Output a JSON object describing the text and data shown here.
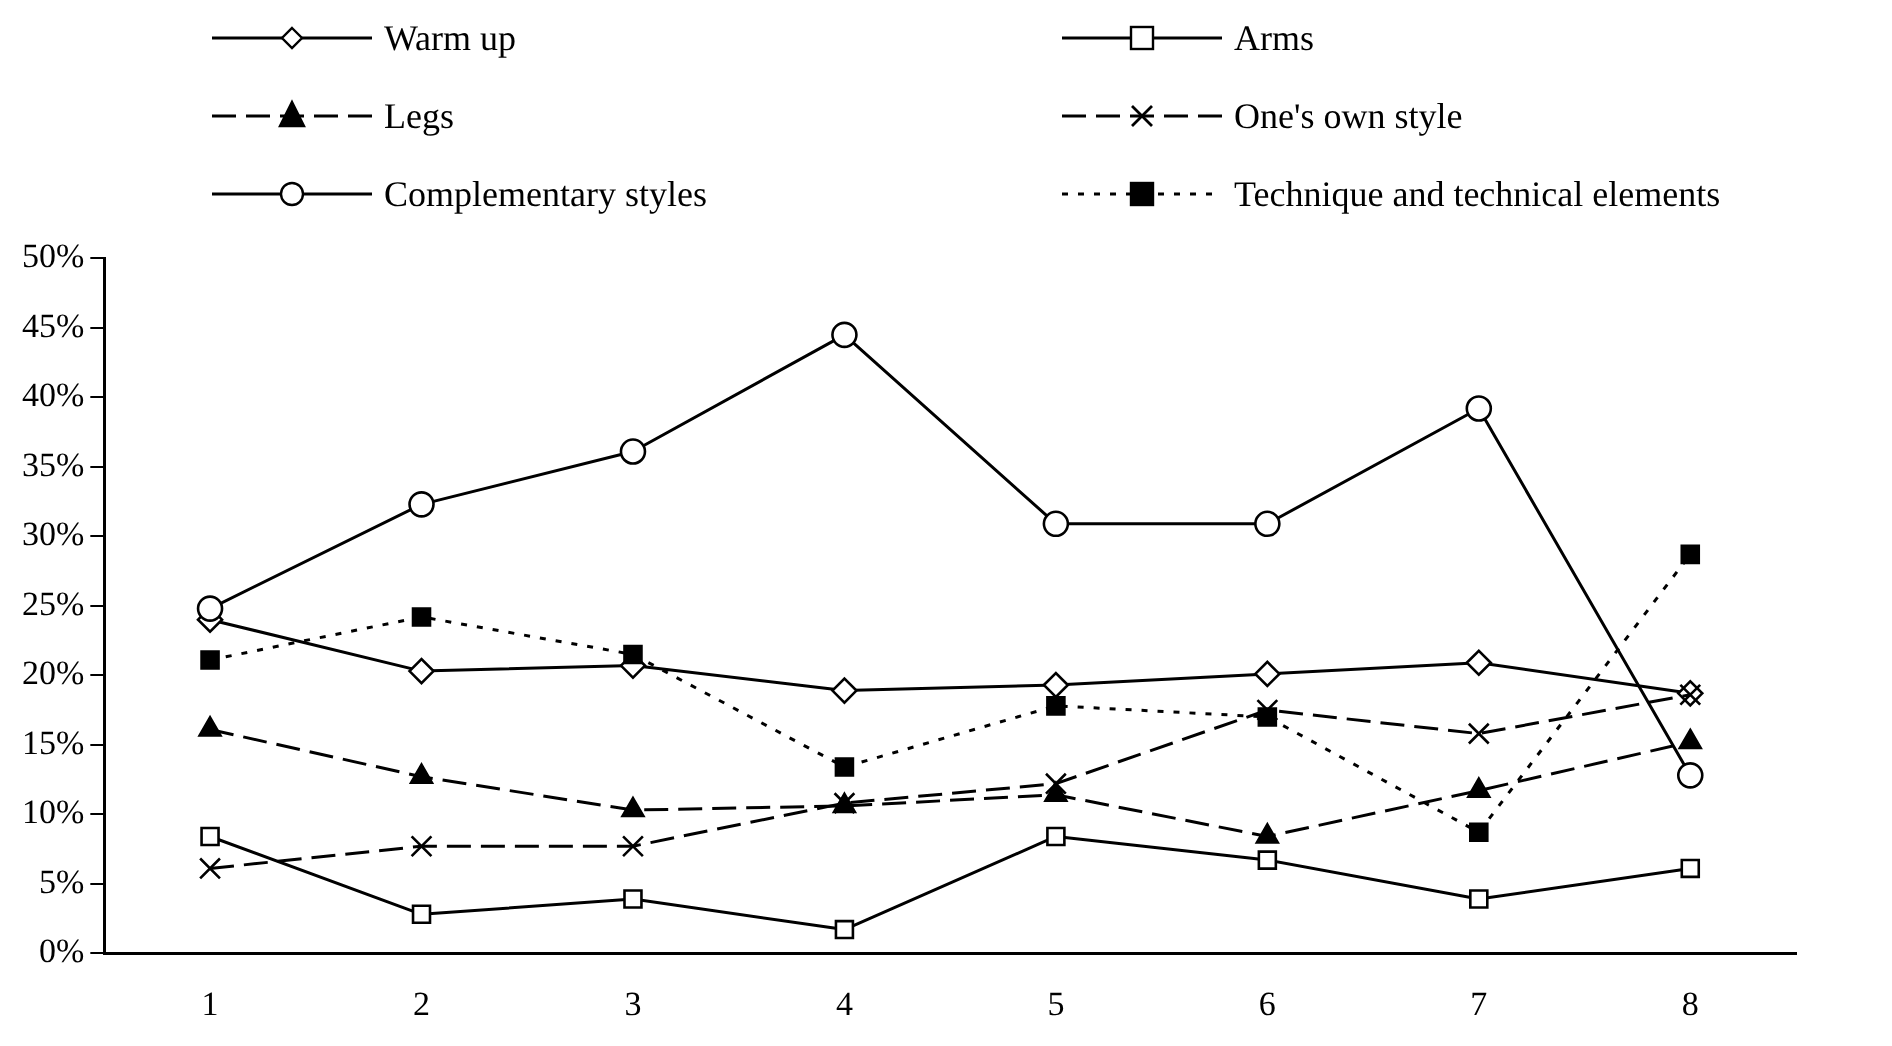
{
  "chart_data": {
    "type": "line",
    "categories": [
      "1",
      "2",
      "3",
      "4",
      "5",
      "6",
      "7",
      "8"
    ],
    "series": [
      {
        "name": "Warm up",
        "color": "#000000",
        "marker": "diamond",
        "line_style": "solid",
        "values": [
          24.0,
          20.3,
          20.7,
          18.9,
          19.3,
          20.1,
          20.9,
          18.7
        ]
      },
      {
        "name": "Arms",
        "color": "#000000",
        "marker": "square",
        "line_style": "solid",
        "values": [
          8.4,
          2.8,
          3.9,
          1.7,
          8.4,
          6.7,
          3.9,
          6.1
        ]
      },
      {
        "name": "Legs",
        "color": "#000000",
        "marker": "triangle",
        "line_style": "dashed",
        "values": [
          16.1,
          12.7,
          10.3,
          10.6,
          11.4,
          8.4,
          11.7,
          15.2
        ]
      },
      {
        "name": "One's own style",
        "color": "#000000",
        "marker": "cross",
        "line_style": "dashed",
        "values": [
          6.1,
          7.7,
          7.7,
          10.8,
          12.2,
          17.5,
          15.8,
          18.6
        ]
      },
      {
        "name": "Complementary styles",
        "color": "#000000",
        "marker": "circle",
        "line_style": "solid",
        "values": [
          24.8,
          32.3,
          36.1,
          44.5,
          30.9,
          30.9,
          39.2,
          12.8
        ]
      },
      {
        "name": "Technique and technical elements",
        "color": "#000000",
        "marker": "square",
        "line_style": "dotted",
        "values": [
          21.1,
          24.2,
          21.5,
          13.4,
          17.8,
          17.0,
          8.7,
          28.7
        ]
      }
    ],
    "ylim": [
      0,
      50
    ],
    "yticks": [
      {
        "value": 0,
        "label": "0%"
      },
      {
        "value": 5,
        "label": "5%"
      },
      {
        "value": 10,
        "label": "10%"
      },
      {
        "value": 15,
        "label": "15%"
      },
      {
        "value": 20,
        "label": "20%"
      },
      {
        "value": 25,
        "label": "25%"
      },
      {
        "value": 30,
        "label": "30%"
      },
      {
        "value": 35,
        "label": "35%"
      },
      {
        "value": 40,
        "label": "40%"
      },
      {
        "value": 45,
        "label": "45%"
      },
      {
        "value": 50,
        "label": "50%"
      }
    ],
    "grid": false,
    "legend": "top"
  }
}
